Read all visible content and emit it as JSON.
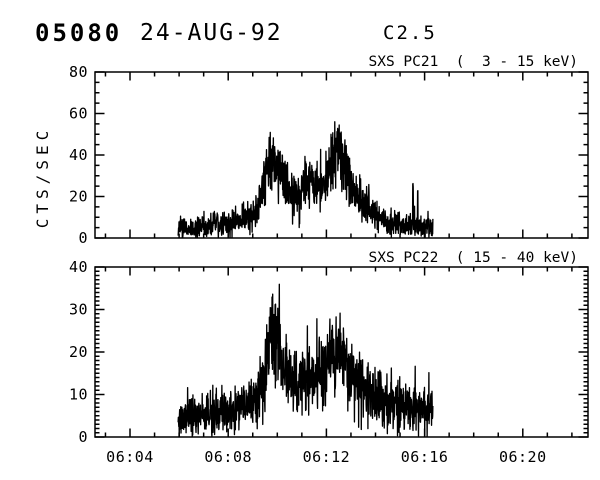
{
  "header": {
    "flare_number": "05080",
    "date": "24-AUG-92",
    "goes_class": "C2.5"
  },
  "colors": {
    "foreground": "#000000",
    "background": "#ffffff"
  },
  "x_axis_note": "time UT, tick values are minutes after 06:00",
  "chart_data": [
    {
      "type": "line",
      "title": "SXS PC21  (  3 - 15 keV)",
      "ylabel": "CTS/SEC",
      "x_range": [
        2.574,
        22.656
      ],
      "x_ticks": [
        {
          "value": 4,
          "label": "06:04"
        },
        {
          "value": 8,
          "label": "06:08"
        },
        {
          "value": 12,
          "label": "06:12"
        },
        {
          "value": 16,
          "label": "06:16"
        },
        {
          "value": 20,
          "label": "06:20"
        }
      ],
      "x_minor_step": 1,
      "show_x_tick_labels": false,
      "y_range": [
        0,
        80
      ],
      "y_ticks": [
        0,
        20,
        40,
        60,
        80
      ],
      "y_minor_step": 5,
      "grid": false,
      "legend": "none",
      "series": {
        "name": "SXS PC21 count rate",
        "start": 5.96,
        "end": 16.34,
        "step": 0.009,
        "noise_coeff": 1.15,
        "seed": 20233,
        "envelope_keypoints": [
          [
            5.96,
            4.5
          ],
          [
            6.5,
            4.5
          ],
          [
            7.0,
            5
          ],
          [
            7.45,
            6.5
          ],
          [
            7.9,
            6
          ],
          [
            8.3,
            7.5
          ],
          [
            8.6,
            9
          ],
          [
            9.0,
            11
          ],
          [
            9.2,
            16
          ],
          [
            9.45,
            28
          ],
          [
            9.65,
            35
          ],
          [
            9.78,
            38
          ],
          [
            9.95,
            34
          ],
          [
            10.2,
            33
          ],
          [
            10.45,
            24
          ],
          [
            10.7,
            19
          ],
          [
            10.9,
            20
          ],
          [
            11.1,
            26
          ],
          [
            11.35,
            27
          ],
          [
            11.6,
            25
          ],
          [
            11.85,
            24
          ],
          [
            12.05,
            30
          ],
          [
            12.25,
            40
          ],
          [
            12.43,
            47
          ],
          [
            12.6,
            40
          ],
          [
            12.8,
            33
          ],
          [
            13.0,
            27
          ],
          [
            13.2,
            22
          ],
          [
            13.5,
            16
          ],
          [
            13.8,
            13
          ],
          [
            14.1,
            10
          ],
          [
            14.5,
            8
          ],
          [
            14.9,
            7
          ],
          [
            15.3,
            6.5
          ],
          [
            15.8,
            6
          ],
          [
            16.34,
            5.5
          ]
        ],
        "spikes": [
          {
            "t": 15.53,
            "v": 26
          },
          {
            "t": 15.72,
            "v": 22
          }
        ]
      }
    },
    {
      "type": "line",
      "title": "SXS PC22  ( 15 - 40 keV)",
      "ylabel": "",
      "x_range": [
        2.574,
        22.656
      ],
      "x_ticks": [
        {
          "value": 4,
          "label": "06:04"
        },
        {
          "value": 8,
          "label": "06:08"
        },
        {
          "value": 12,
          "label": "06:12"
        },
        {
          "value": 16,
          "label": "06:16"
        },
        {
          "value": 20,
          "label": "06:20"
        }
      ],
      "x_minor_step": 1,
      "show_x_tick_labels": true,
      "y_range": [
        0,
        40
      ],
      "y_ticks": [
        0,
        10,
        20,
        30,
        40
      ],
      "y_minor_step": 1,
      "grid": false,
      "legend": "none",
      "series": {
        "name": "SXS PC22 count rate",
        "start": 5.96,
        "end": 16.34,
        "step": 0.009,
        "noise_coeff": 1.05,
        "seed": 77441,
        "envelope_keypoints": [
          [
            5.96,
            5
          ],
          [
            6.4,
            4.5
          ],
          [
            6.9,
            5
          ],
          [
            7.4,
            5.5
          ],
          [
            7.9,
            6
          ],
          [
            8.4,
            7
          ],
          [
            8.9,
            8
          ],
          [
            9.2,
            10
          ],
          [
            9.5,
            15
          ],
          [
            9.7,
            24
          ],
          [
            9.82,
            28
          ],
          [
            10.0,
            22
          ],
          [
            10.2,
            17
          ],
          [
            10.5,
            14
          ],
          [
            10.8,
            13
          ],
          [
            11.1,
            13.5
          ],
          [
            11.4,
            14
          ],
          [
            11.7,
            15
          ],
          [
            12.0,
            17
          ],
          [
            12.2,
            19
          ],
          [
            12.43,
            21
          ],
          [
            12.6,
            19
          ],
          [
            12.85,
            16
          ],
          [
            13.1,
            14
          ],
          [
            13.4,
            12
          ],
          [
            13.7,
            10.5
          ],
          [
            14.0,
            9.5
          ],
          [
            14.4,
            8.5
          ],
          [
            14.8,
            8
          ],
          [
            15.2,
            7.5
          ],
          [
            15.6,
            7
          ],
          [
            16.0,
            6.5
          ],
          [
            16.34,
            6
          ]
        ],
        "spikes": []
      }
    }
  ]
}
